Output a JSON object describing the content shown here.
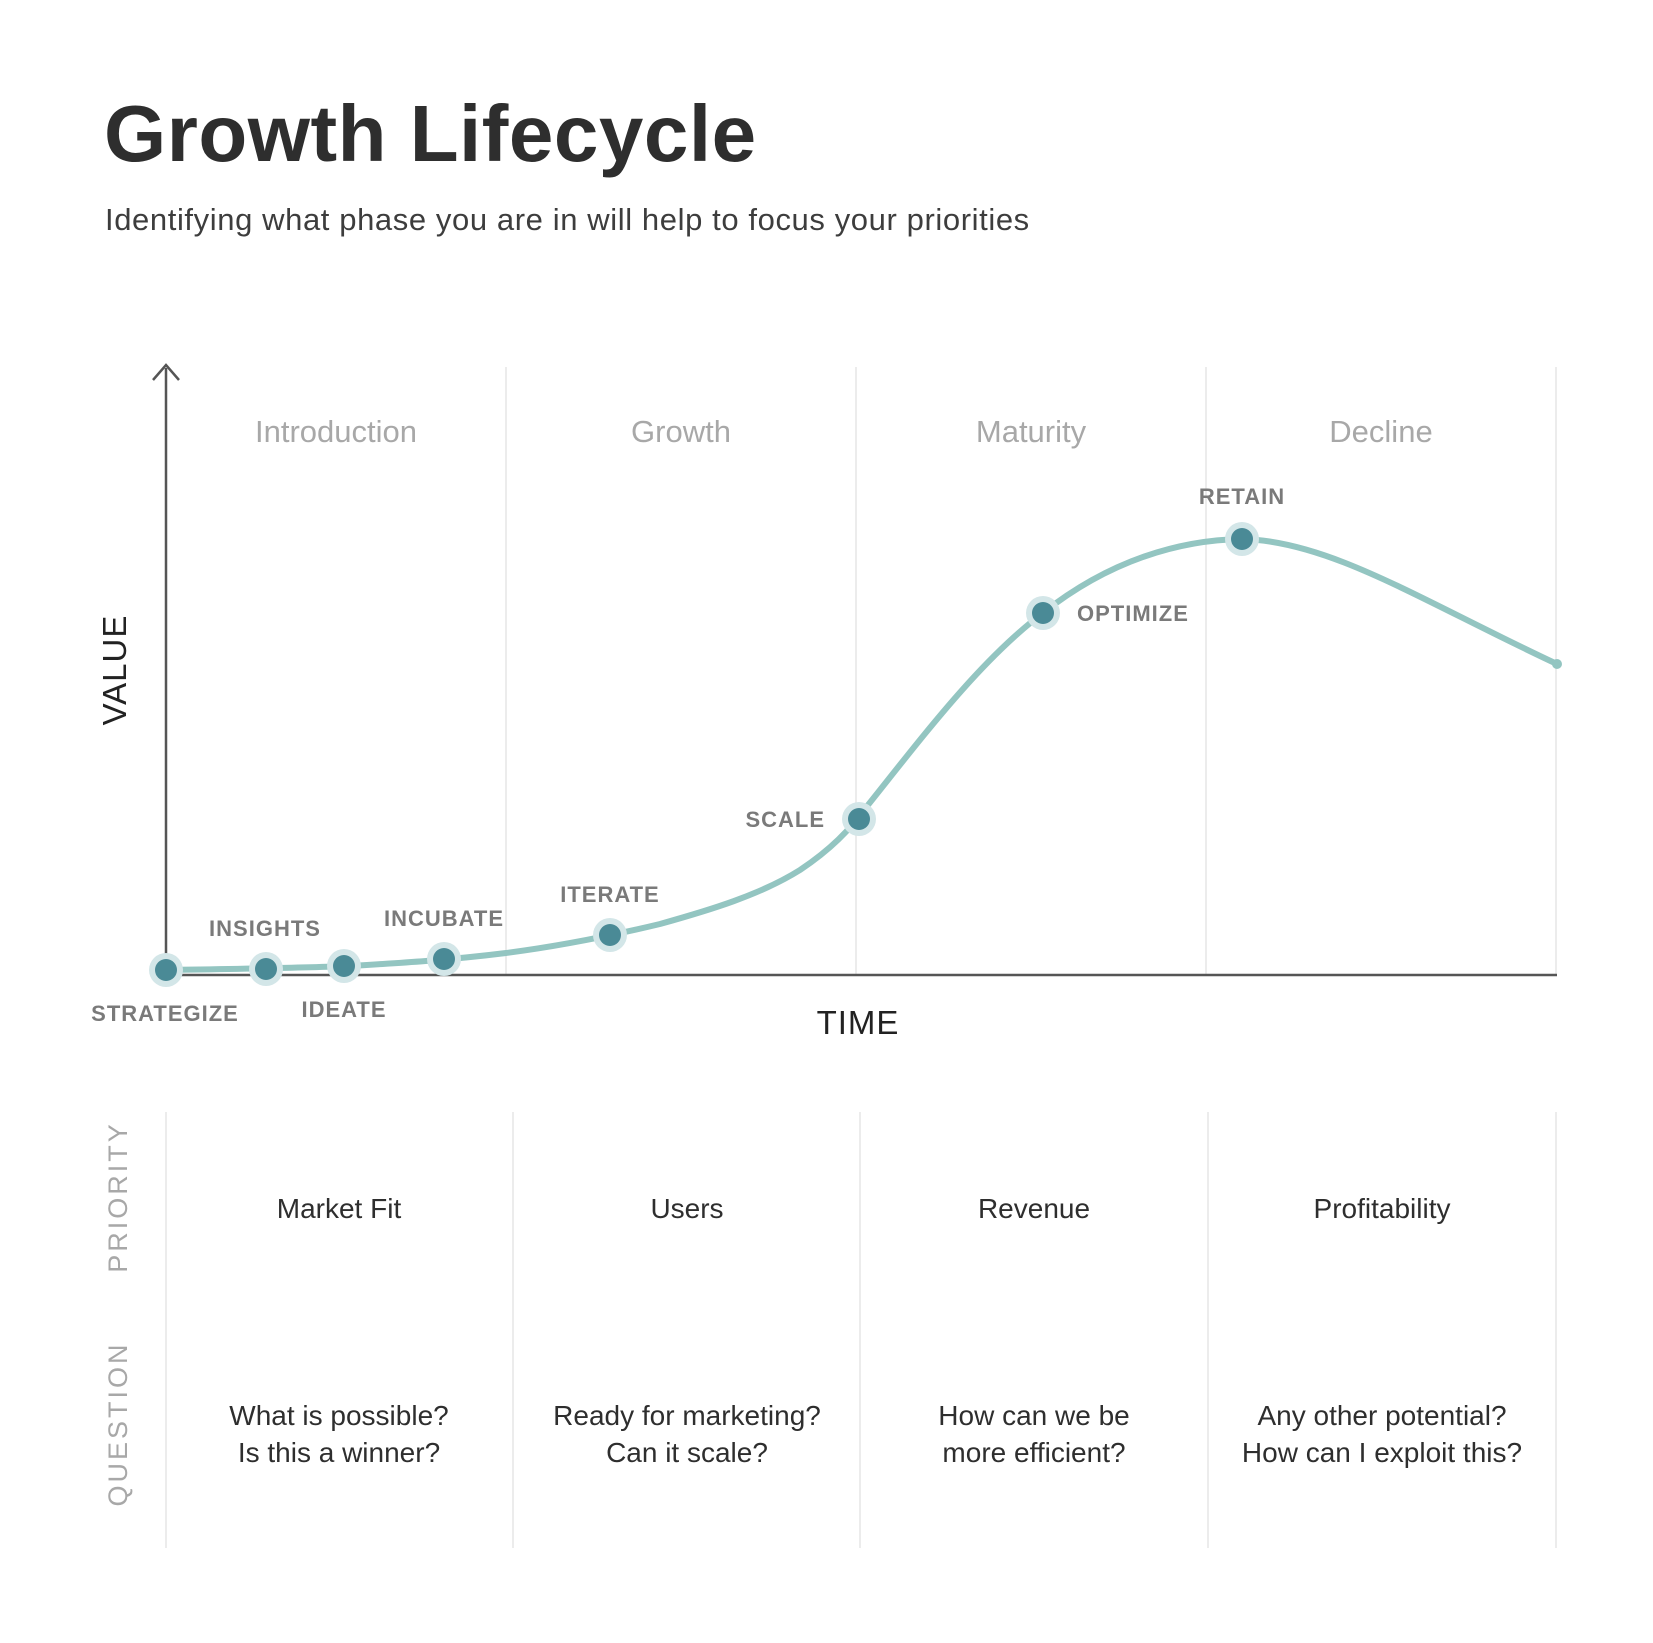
{
  "header": {
    "title": "Growth Lifecycle",
    "subtitle": "Identifying what phase you are in will help to focus your priorities"
  },
  "axes": {
    "x_label": "TIME",
    "y_label": "VALUE"
  },
  "phases": [
    "Introduction",
    "Growth",
    "Maturity",
    "Decline"
  ],
  "stages": [
    "STRATEGIZE",
    "INSIGHTS",
    "IDEATE",
    "INCUBATE",
    "ITERATE",
    "SCALE",
    "OPTIMIZE",
    "RETAIN"
  ],
  "rows": {
    "priority_label": "PRIORITY",
    "question_label": "QUESTION"
  },
  "priorities": [
    "Market Fit",
    "Users",
    "Revenue",
    "Profitability"
  ],
  "questions": [
    [
      "What is possible?",
      "Is this a winner?"
    ],
    [
      "Ready for marketing?",
      "Can it scale?"
    ],
    [
      "How can we be",
      "more efficient?"
    ],
    [
      "Any other potential?",
      "How can I exploit this?"
    ]
  ],
  "colors": {
    "curve": "#93c5c1",
    "marker": "#4a8a96",
    "marker_halo": "#d3e6e8",
    "axis": "#555555",
    "grid": "#ececec"
  }
}
